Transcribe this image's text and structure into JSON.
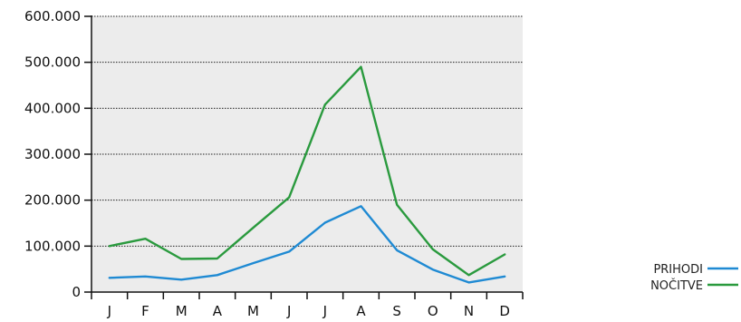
{
  "chart_data": {
    "type": "line",
    "title": "",
    "xlabel": "",
    "ylabel": "",
    "categories": [
      "J",
      "F",
      "M",
      "A",
      "M",
      "J",
      "J",
      "A",
      "S",
      "O",
      "N",
      "D"
    ],
    "ylim": [
      0,
      600000
    ],
    "yticks": [
      0,
      100000,
      200000,
      300000,
      400000,
      500000,
      600000
    ],
    "ytick_labels": [
      "0",
      "100.000",
      "200.000",
      "300.000",
      "400.000",
      "500.000",
      "600.000"
    ],
    "grid": "horizontal-dotted",
    "legend_position": "bottom-right",
    "series": [
      {
        "name": "PRIHODI",
        "color": "#1f8ad3",
        "values": [
          31000,
          34000,
          27000,
          37000,
          63000,
          88000,
          151000,
          187000,
          91000,
          49000,
          21000,
          34000
        ]
      },
      {
        "name": "NOČITVE",
        "color": "#2a9a3e",
        "values": [
          100000,
          116000,
          72000,
          73000,
          140000,
          206000,
          408000,
          490000,
          190000,
          93000,
          37000,
          82000
        ]
      }
    ]
  }
}
